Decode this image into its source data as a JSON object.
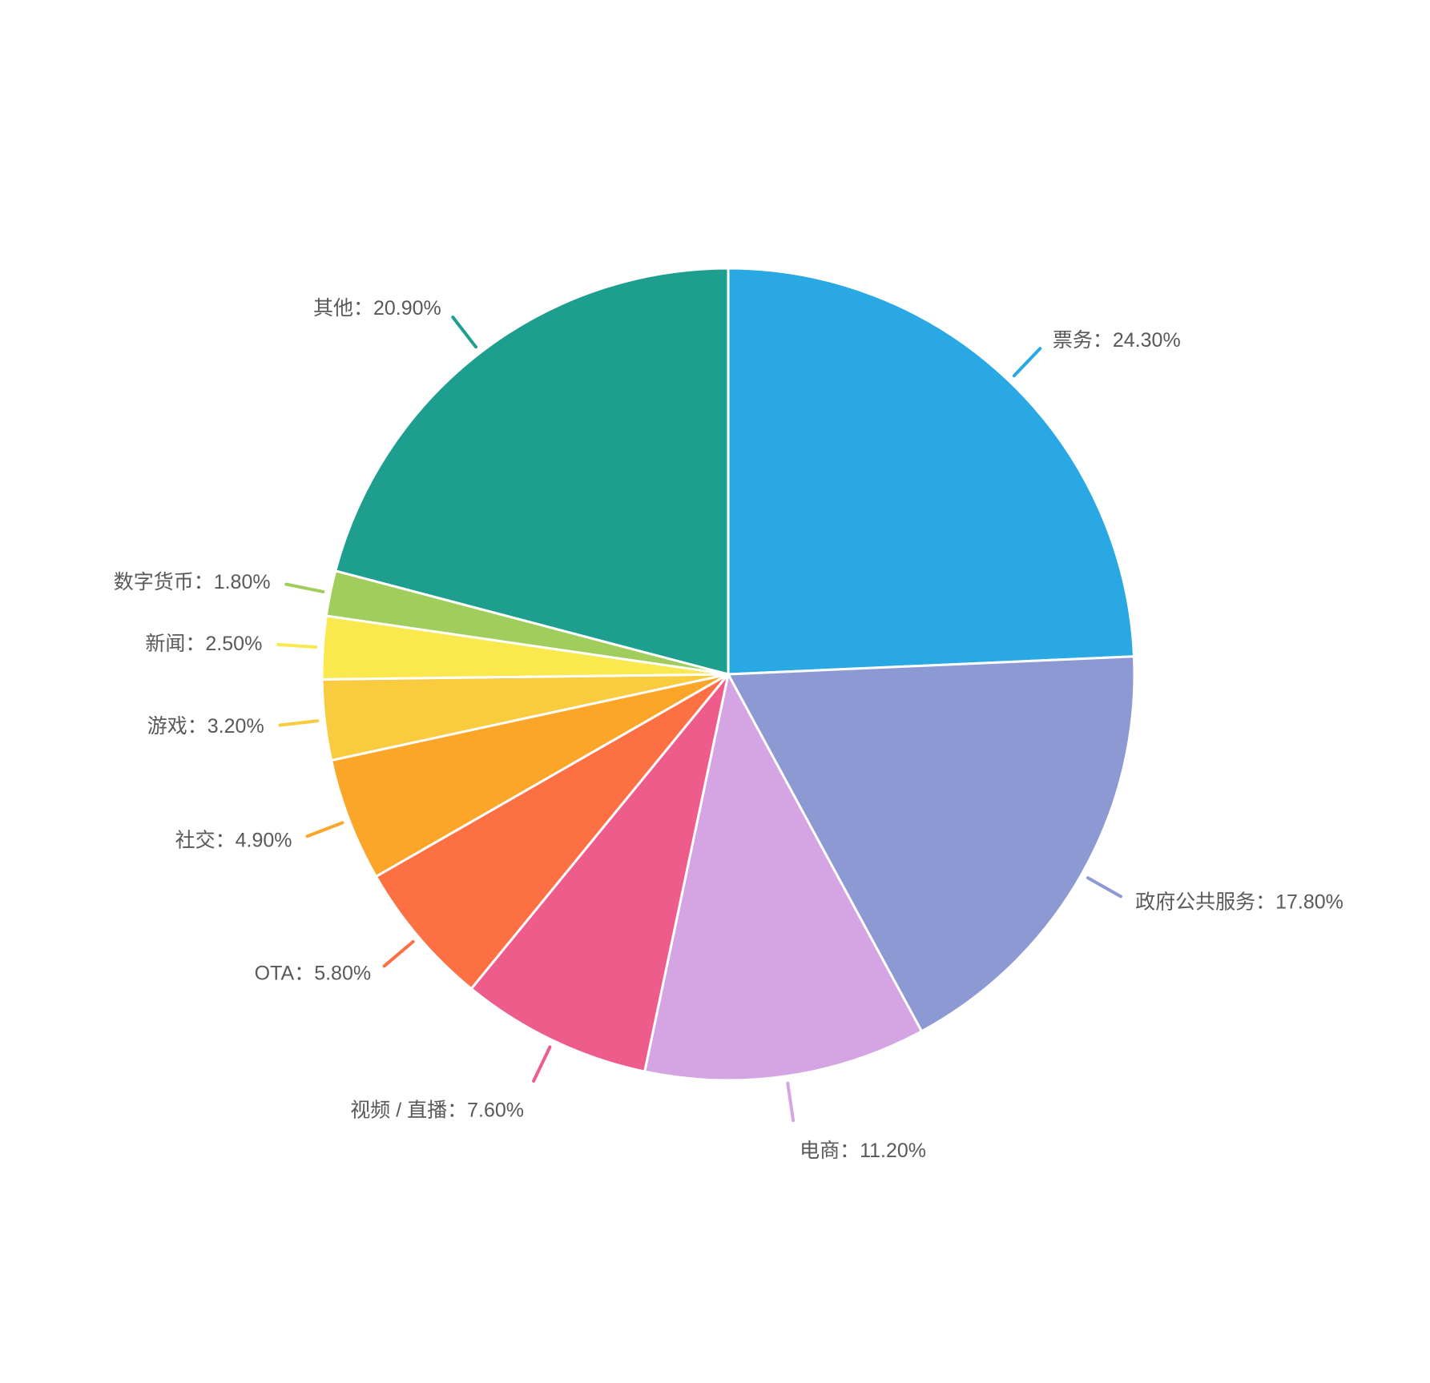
{
  "chart_data": {
    "type": "pie",
    "title": "",
    "unit": "%",
    "start_angle": "12-o-clock",
    "direction": "clockwise",
    "legend": "none",
    "label_text_color": "#595959",
    "background_color": "#ffffff",
    "slice_border_color": "#ffffff",
    "slices": [
      {
        "label": "票务",
        "value": 24.3,
        "display": "票务：24.30%",
        "color": "#29a8e3"
      },
      {
        "label": "政府公共服务",
        "value": 17.8,
        "display": "政府公共服务：17.80%",
        "color": "#8c99d3"
      },
      {
        "label": "电商",
        "value": 11.2,
        "display": "电商：11.20%",
        "color": "#d4a5e2"
      },
      {
        "label": "视频 / 直播",
        "value": 7.6,
        "display": "视频 / 直播：7.60%",
        "color": "#ee5c8c"
      },
      {
        "label": "OTA",
        "value": 5.8,
        "display": "OTA：5.80%",
        "color": "#fc7043"
      },
      {
        "label": "社交",
        "value": 4.9,
        "display": "社交：4.90%",
        "color": "#fba629"
      },
      {
        "label": "游戏",
        "value": 3.2,
        "display": "游戏：3.20%",
        "color": "#f9cb3f"
      },
      {
        "label": "新闻",
        "value": 2.5,
        "display": "新闻：2.50%",
        "color": "#fae94e"
      },
      {
        "label": "数字货币",
        "value": 1.8,
        "display": "数字货币：1.80%",
        "color": "#a0cd5b"
      },
      {
        "label": "其他",
        "value": 20.9,
        "display": "其他：20.90%",
        "color": "#1d9e8f"
      }
    ]
  }
}
